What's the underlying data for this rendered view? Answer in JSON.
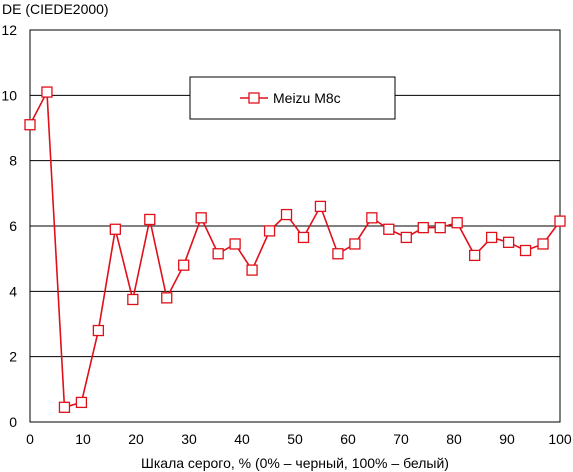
{
  "chart_data": {
    "type": "line",
    "title": "",
    "ylabel": "DE (CIEDE2000)",
    "xlabel": "Шкала серого, % (0% – черный, 100% – белый)",
    "xlim": [
      0,
      100
    ],
    "ylim": [
      0,
      12
    ],
    "xticks": [
      0,
      10,
      20,
      30,
      40,
      50,
      60,
      70,
      80,
      90,
      100
    ],
    "yticks": [
      0,
      2,
      4,
      6,
      8,
      10,
      12
    ],
    "grid": "horizontal",
    "legend_position": "top-center",
    "colors": {
      "series": "#e0101a",
      "grid": "#000000",
      "marker_fill": "#ffffff"
    },
    "series": [
      {
        "name": "Meizu M8c",
        "marker": "open-square",
        "points": [
          [
            0,
            9.1
          ],
          [
            3.2,
            10.1
          ],
          [
            6.5,
            0.45
          ],
          [
            9.7,
            0.6
          ],
          [
            12.9,
            2.8
          ],
          [
            16.1,
            5.9
          ],
          [
            19.4,
            3.75
          ],
          [
            22.6,
            6.2
          ],
          [
            25.8,
            3.8
          ],
          [
            29.0,
            4.8
          ],
          [
            32.3,
            6.25
          ],
          [
            35.5,
            5.15
          ],
          [
            38.7,
            5.45
          ],
          [
            41.9,
            4.65
          ],
          [
            45.2,
            5.85
          ],
          [
            48.4,
            6.35
          ],
          [
            51.6,
            5.65
          ],
          [
            54.8,
            6.6
          ],
          [
            58.1,
            5.15
          ],
          [
            61.3,
            5.45
          ],
          [
            64.5,
            6.25
          ],
          [
            67.7,
            5.9
          ],
          [
            71.0,
            5.65
          ],
          [
            74.2,
            5.95
          ],
          [
            77.4,
            5.95
          ],
          [
            80.6,
            6.1
          ],
          [
            83.9,
            5.1
          ],
          [
            87.1,
            5.65
          ],
          [
            90.3,
            5.5
          ],
          [
            93.5,
            5.25
          ],
          [
            96.8,
            5.45
          ],
          [
            100,
            6.15
          ]
        ]
      }
    ]
  }
}
